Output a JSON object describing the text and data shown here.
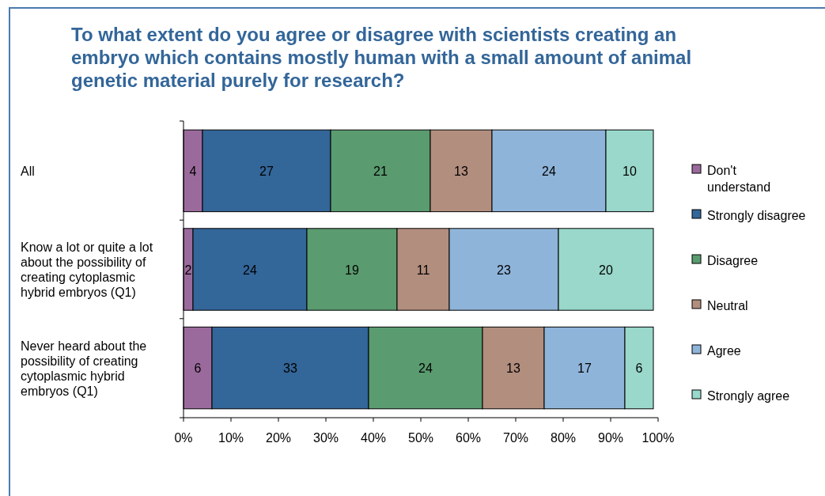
{
  "chart_data": {
    "type": "bar",
    "orientation": "horizontal",
    "stacked": true,
    "title": "To what extent do you agree or disagree with scientists creating an embryo which contains mostly human with a small amount of animal genetic material purely for research?",
    "categories": [
      "All",
      "Know a lot or quite a lot about the possibility of creating cytoplasmic hybrid embryos (Q1)",
      "Never heard about the possibility of creating cytoplasmic hybrid embryos (Q1)"
    ],
    "series": [
      {
        "name": "Don't understand",
        "color": "#9b6a9c",
        "values": [
          4,
          2,
          6
        ]
      },
      {
        "name": "Strongly disagree",
        "color": "#336699",
        "values": [
          27,
          24,
          33
        ]
      },
      {
        "name": "Disagree",
        "color": "#5a9b6f",
        "values": [
          21,
          19,
          24
        ]
      },
      {
        "name": "Neutral",
        "color": "#b28e7e",
        "values": [
          13,
          11,
          13
        ]
      },
      {
        "name": "Agree",
        "color": "#8fb4da",
        "values": [
          24,
          23,
          17
        ]
      },
      {
        "name": "Strongly agree",
        "color": "#99d8cb",
        "values": [
          10,
          20,
          6
        ]
      }
    ],
    "xlim": [
      0,
      100
    ],
    "xticks": [
      {
        "value": 0,
        "label": "0%"
      },
      {
        "value": 10,
        "label": "10%"
      },
      {
        "value": 20,
        "label": "20%"
      },
      {
        "value": 30,
        "label": "30%"
      },
      {
        "value": 40,
        "label": "40%"
      },
      {
        "value": 50,
        "label": "50%"
      },
      {
        "value": 60,
        "label": "60%"
      },
      {
        "value": 70,
        "label": "70%"
      },
      {
        "value": 80,
        "label": "80%"
      },
      {
        "value": 90,
        "label": "90%"
      },
      {
        "value": 100,
        "label": "100%"
      }
    ],
    "data_labels": true,
    "legend": "right",
    "grid": false
  }
}
